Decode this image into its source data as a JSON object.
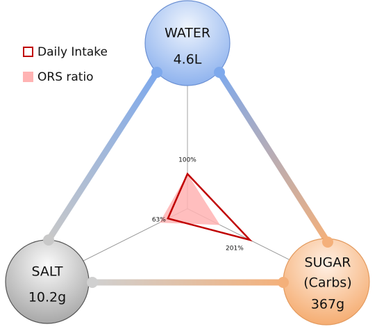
{
  "chart_data": {
    "type": "radar",
    "axes": [
      {
        "label": "WATER",
        "amount": "4.6L"
      },
      {
        "label": "SUGAR",
        "sublabel": "(Carbs)",
        "amount": "367g"
      },
      {
        "label": "SALT",
        "amount": "10.2g"
      }
    ],
    "series": [
      {
        "name": "Daily Intake",
        "color": "#c00000",
        "filled": false,
        "values": [
          100,
          201,
          63
        ],
        "value_labels": [
          "100%",
          "201%",
          "63%"
        ]
      },
      {
        "name": "ORS ratio",
        "color": "#ffb3b3",
        "filled": true,
        "values": [
          100,
          105,
          90
        ]
      }
    ]
  }
}
